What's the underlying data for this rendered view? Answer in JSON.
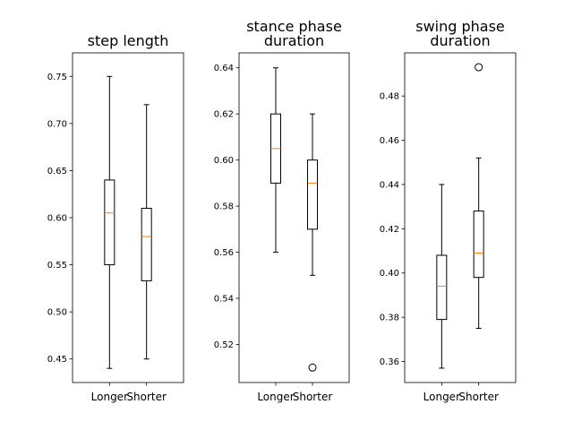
{
  "chart_data": [
    {
      "type": "box",
      "title": "step length",
      "categories": [
        "Longer",
        "Shorter"
      ],
      "ylim": [
        0.425,
        0.775
      ],
      "yticks": [
        0.45,
        0.5,
        0.55,
        0.6,
        0.65,
        0.7,
        0.75
      ],
      "ytick_labels": [
        "0.45",
        "0.50",
        "0.55",
        "0.60",
        "0.65",
        "0.70",
        "0.75"
      ],
      "boxes": [
        {
          "name": "Longer",
          "whisker_low": 0.44,
          "q1": 0.55,
          "median": 0.605,
          "q3": 0.64,
          "whisker_high": 0.75,
          "outliers": []
        },
        {
          "name": "Shorter",
          "whisker_low": 0.45,
          "q1": 0.533,
          "median": 0.58,
          "q3": 0.61,
          "whisker_high": 0.72,
          "outliers": []
        }
      ],
      "colors": {
        "box": "#000000",
        "median": "#ff7f0e"
      }
    },
    {
      "type": "box",
      "title": "stance phase\nduration",
      "categories": [
        "Longer",
        "Shorter"
      ],
      "ylim": [
        0.5035,
        0.6465
      ],
      "yticks": [
        0.52,
        0.54,
        0.56,
        0.58,
        0.6,
        0.62,
        0.64
      ],
      "ytick_labels": [
        "0.52",
        "0.54",
        "0.56",
        "0.58",
        "0.60",
        "0.62",
        "0.64"
      ],
      "boxes": [
        {
          "name": "Longer",
          "whisker_low": 0.56,
          "q1": 0.59,
          "median": 0.605,
          "q3": 0.62,
          "whisker_high": 0.64,
          "outliers": []
        },
        {
          "name": "Shorter",
          "whisker_low": 0.55,
          "q1": 0.57,
          "median": 0.59,
          "q3": 0.6,
          "whisker_high": 0.62,
          "outliers": [
            0.51
          ]
        }
      ],
      "colors": {
        "box": "#000000",
        "median": "#ff7f0e"
      }
    },
    {
      "type": "box",
      "title": "swing phase\nduration",
      "categories": [
        "Longer",
        "Shorter"
      ],
      "ylim": [
        0.3505,
        0.4995
      ],
      "yticks": [
        0.36,
        0.38,
        0.4,
        0.42,
        0.44,
        0.46,
        0.48
      ],
      "ytick_labels": [
        "0.36",
        "0.38",
        "0.40",
        "0.42",
        "0.44",
        "0.46",
        "0.48"
      ],
      "boxes": [
        {
          "name": "Longer",
          "whisker_low": 0.357,
          "q1": 0.379,
          "median": 0.394,
          "q3": 0.408,
          "whisker_high": 0.44,
          "outliers": []
        },
        {
          "name": "Shorter",
          "whisker_low": 0.375,
          "q1": 0.398,
          "median": 0.409,
          "q3": 0.428,
          "whisker_high": 0.452,
          "outliers": [
            0.493
          ]
        }
      ],
      "colors": {
        "box": "#000000",
        "median": "#ff7f0e"
      }
    }
  ]
}
